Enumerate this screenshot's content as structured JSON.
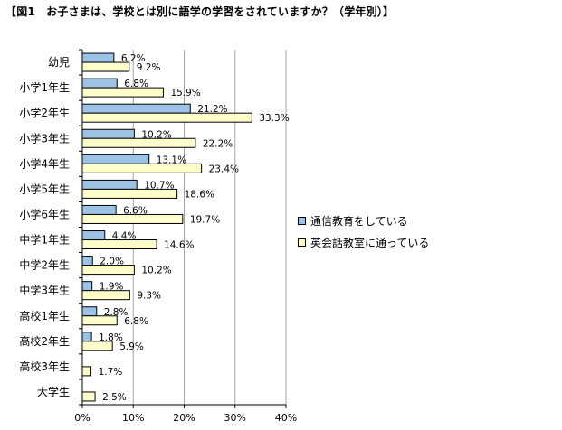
{
  "chart_data": {
    "type": "bar",
    "orientation": "horizontal",
    "title": "【図1　お子さまは、学校とは別に語学の学習をされていますか？（学年別）】",
    "categories": [
      "幼児",
      "小学1年生",
      "小学2年生",
      "小学3年生",
      "小学4年生",
      "小学5年生",
      "小学6年生",
      "中学1年生",
      "中学2年生",
      "中学3年生",
      "高校1年生",
      "高校2年生",
      "高校3年生",
      "大学生"
    ],
    "series": [
      {
        "name": "通信教育をしている",
        "color": "#9CC3E5",
        "values": [
          6.2,
          6.8,
          21.2,
          10.2,
          13.1,
          10.7,
          6.6,
          4.4,
          2.0,
          1.9,
          2.8,
          1.8,
          null,
          null
        ],
        "labels": [
          "6.2%",
          "6.8%",
          "21.2%",
          "10.2%",
          "13.1%",
          "10.7%",
          "6.6%",
          "4.4%",
          "2.0%",
          "1.9%",
          "2.8%",
          "1.8%",
          null,
          null
        ]
      },
      {
        "name": "英会話教室に通っている",
        "color": "#FFFFCC",
        "values": [
          9.2,
          15.9,
          33.3,
          22.2,
          23.4,
          18.6,
          19.7,
          14.6,
          10.2,
          9.3,
          6.8,
          5.9,
          1.7,
          2.5
        ],
        "labels": [
          "9.2%",
          "15.9%",
          "33.3%",
          "22.2%",
          "23.4%",
          "18.6%",
          "19.7%",
          "14.6%",
          "10.2%",
          "9.3%",
          "6.8%",
          "5.9%",
          "1.7%",
          "2.5%"
        ]
      }
    ],
    "xlim": [
      0,
      40
    ],
    "xticks": [
      "0%",
      "10%",
      "20%",
      "30%",
      "40%"
    ],
    "grid": "vertical",
    "legend_position": "right"
  }
}
